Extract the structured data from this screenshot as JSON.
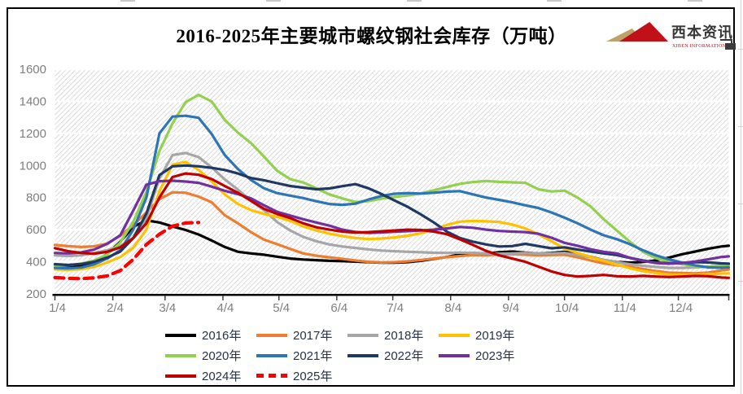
{
  "page": {
    "title": "2016-2025年主要城市螺纹钢社会库存（万吨）"
  },
  "logo": {
    "name": "西本资讯",
    "subtitle": "XIBEN INFORMATION"
  },
  "y_axis": {
    "tick_labels": [
      "200",
      "400",
      "600",
      "800",
      "1000",
      "1200",
      "1400",
      "1600"
    ]
  },
  "x_axis": {
    "tick_labels": [
      "1/4",
      "2/4",
      "3/4",
      "4/4",
      "5/4",
      "6/4",
      "7/4",
      "8/4",
      "9/4",
      "10/4",
      "11/4",
      "12/4"
    ]
  },
  "chart_data": {
    "type": "line",
    "title": "2016-2025年主要城市螺纹钢社会库存（万吨）",
    "ylabel": "万吨",
    "ylim": [
      200,
      1600
    ],
    "ytick_step": 200,
    "x_unit": "weekly points starting Jan 4 (day-of-year 4, step 7 days)",
    "grid": "horizontal white gridlines on diagonal-hatch background",
    "legend_position": "bottom",
    "series": [
      {
        "name": "2016年",
        "color": "#000000",
        "style": "solid",
        "values": [
          380,
          368,
          372,
          395,
          448,
          525,
          618,
          658,
          645,
          620,
          598,
          570,
          532,
          492,
          462,
          452,
          444,
          432,
          420,
          414,
          410,
          406,
          404,
          401,
          398,
          395,
          395,
          398,
          406,
          418,
          430,
          446,
          454,
          451,
          459,
          464,
          457,
          451,
          455,
          462,
          449,
          431,
          411,
          399,
          395,
          399,
          409,
          426,
          447,
          464,
          481,
          495,
          500
        ]
      },
      {
        "name": "2017年",
        "color": "#ED7D31",
        "style": "solid",
        "values": [
          505,
          497,
          492,
          496,
          513,
          562,
          628,
          708,
          790,
          833,
          830,
          806,
          770,
          690,
          640,
          585,
          538,
          510,
          480,
          452,
          438,
          428,
          418,
          408,
          400,
          396,
          398,
          403,
          411,
          420,
          429,
          436,
          442,
          440,
          445,
          448,
          444,
          440,
          442,
          444,
          428,
          408,
          390,
          378,
          369,
          355,
          342,
          332,
          330,
          328,
          333,
          346,
          352
        ]
      },
      {
        "name": "2018年",
        "color": "#A6A6A6",
        "style": "solid",
        "values": [
          440,
          436,
          440,
          455,
          472,
          498,
          548,
          672,
          920,
          1065,
          1078,
          1052,
          988,
          913,
          850,
          780,
          722,
          648,
          595,
          555,
          528,
          508,
          495,
          486,
          477,
          470,
          466,
          462,
          459,
          456,
          455,
          457,
          455,
          452,
          450,
          452,
          455,
          452,
          452,
          455,
          442,
          428,
          412,
          398,
          385,
          375,
          368,
          362,
          362,
          365,
          370,
          376,
          378
        ]
      },
      {
        "name": "2019年",
        "color": "#FFC000",
        "style": "solid",
        "values": [
          352,
          349,
          354,
          368,
          396,
          430,
          488,
          600,
          840,
          1005,
          1022,
          972,
          900,
          820,
          760,
          722,
          698,
          680,
          655,
          620,
          595,
          575,
          560,
          548,
          542,
          545,
          552,
          562,
          578,
          600,
          630,
          650,
          655,
          652,
          648,
          632,
          608,
          572,
          528,
          482,
          455,
          430,
          405,
          382,
          360,
          342,
          330,
          320,
          318,
          318,
          322,
          327,
          328
        ]
      },
      {
        "name": "2020年",
        "color": "#92D050",
        "style": "solid",
        "values": [
          375,
          378,
          388,
          408,
          445,
          520,
          650,
          835,
          1090,
          1262,
          1395,
          1440,
          1398,
          1284,
          1205,
          1140,
          1055,
          968,
          915,
          894,
          858,
          820,
          795,
          772,
          778,
          793,
          804,
          813,
          826,
          845,
          866,
          886,
          897,
          903,
          898,
          895,
          892,
          852,
          838,
          843,
          800,
          745,
          665,
          595,
          525,
          462,
          422,
          400,
          385,
          372,
          368,
          372,
          380
        ]
      },
      {
        "name": "2021年",
        "color": "#2E75B6",
        "style": "solid",
        "values": [
          362,
          359,
          364,
          384,
          420,
          472,
          600,
          800,
          1200,
          1305,
          1310,
          1297,
          1195,
          1065,
          978,
          910,
          858,
          828,
          812,
          797,
          777,
          760,
          755,
          762,
          788,
          810,
          824,
          828,
          825,
          830,
          837,
          840,
          820,
          800,
          786,
          770,
          752,
          735,
          707,
          675,
          640,
          600,
          565,
          541,
          510,
          472,
          440,
          415,
          395,
          378,
          365,
          363,
          365
        ]
      },
      {
        "name": "2022年",
        "color": "#1F3864",
        "style": "solid",
        "values": [
          385,
          380,
          386,
          400,
          426,
          464,
          548,
          700,
          940,
          995,
          1000,
          995,
          985,
          972,
          950,
          922,
          908,
          890,
          872,
          862,
          852,
          857,
          871,
          884,
          858,
          822,
          782,
          742,
          695,
          645,
          588,
          548,
          525,
          508,
          495,
          498,
          512,
          498,
          484,
          490,
          476,
          464,
          452,
          442,
          424,
          408,
          396,
          390,
          393,
          398,
          396,
          390,
          388
        ]
      },
      {
        "name": "2023年",
        "color": "#7030A0",
        "style": "solid",
        "values": [
          455,
          452,
          458,
          476,
          512,
          565,
          720,
          880,
          902,
          905,
          900,
          892,
          868,
          842,
          822,
          795,
          752,
          712,
          688,
          665,
          645,
          625,
          600,
          586,
          580,
          583,
          587,
          591,
          595,
          600,
          608,
          617,
          612,
          600,
          592,
          588,
          585,
          575,
          550,
          518,
          500,
          478,
          462,
          452,
          425,
          405,
          392,
          388,
          392,
          402,
          415,
          430,
          434
        ]
      },
      {
        "name": "2024年",
        "color": "#C00000",
        "style": "solid",
        "values": [
          485,
          466,
          455,
          450,
          462,
          490,
          548,
          640,
          800,
          928,
          950,
          942,
          915,
          872,
          830,
          780,
          730,
          698,
          672,
          640,
          615,
          600,
          588,
          582,
          585,
          590,
          595,
          600,
          598,
          588,
          572,
          540,
          505,
          468,
          440,
          420,
          400,
          370,
          340,
          318,
          308,
          312,
          318,
          310,
          308,
          312,
          308,
          305,
          308,
          312,
          310,
          302,
          300
        ]
      },
      {
        "name": "2025年",
        "color": "#FF0000",
        "style": "dashed",
        "values": [
          302,
          297,
          295,
          300,
          312,
          345,
          415,
          508,
          572,
          622,
          642,
          645
        ]
      }
    ]
  }
}
